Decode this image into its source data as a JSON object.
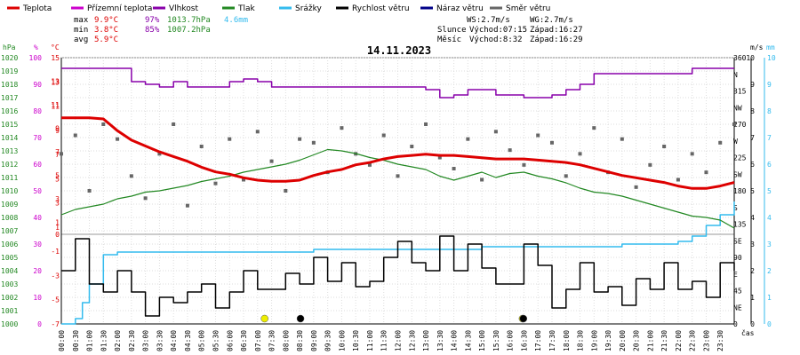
{
  "legend": [
    {
      "label": "Teplota",
      "color": "#dd0000"
    },
    {
      "label": "Přízemní teplota",
      "color": "#cc00cc"
    },
    {
      "label": "Vlhkost",
      "color": "#8800aa"
    },
    {
      "label": "Tlak",
      "color": "#228822"
    },
    {
      "label": "Srážky",
      "color": "#33bbee"
    },
    {
      "label": "Rychlost větru",
      "color": "#000000"
    },
    {
      "label": "Náraz větru",
      "color": "#000088"
    },
    {
      "label": "Směr větru",
      "color": "#666666"
    }
  ],
  "stats": {
    "max": {
      "label": "max",
      "temp": "9.9°C",
      "hum": "97%",
      "press": "1013.7hPa",
      "rain": "4.6mm"
    },
    "min": {
      "label": "min",
      "temp": "3.8°C",
      "hum": "85%",
      "press": "1007.2hPa"
    },
    "avg": {
      "label": "avg",
      "temp": "5.9°C"
    }
  },
  "info": {
    "ws": "WS:2.7m/s",
    "wg": "WG:2.7m/s",
    "sun_label": "Slunce",
    "sun_rise": "Východ:07:15",
    "sun_set": "Západ:16:27",
    "moon_label": "Měsíc",
    "moon_rise": "Východ:8:32",
    "moon_set": "Západ:16:29"
  },
  "chart_data": {
    "type": "line",
    "title": "14.11.2023",
    "x_tick_labels": [
      "00:00",
      "00:30",
      "01:00",
      "01:30",
      "02:00",
      "02:30",
      "03:00",
      "03:30",
      "04:00",
      "04:30",
      "05:00",
      "05:30",
      "06:00",
      "06:30",
      "07:00",
      "07:30",
      "08:00",
      "08:30",
      "09:00",
      "09:30",
      "10:00",
      "10:30",
      "11:00",
      "11:30",
      "12:00",
      "12:30",
      "13:00",
      "13:30",
      "14:00",
      "14:30",
      "15:00",
      "15:30",
      "16:00",
      "16:30",
      "17:00",
      "17:30",
      "18:00",
      "18:30",
      "19:00",
      "19:30",
      "20:00",
      "20:30",
      "21:00",
      "21:30",
      "22:00",
      "22:30",
      "23:00",
      "23:30"
    ],
    "x_axis_label": "čas",
    "axes": {
      "pressure": {
        "unit": "hPa",
        "range": [
          1000,
          1020
        ],
        "ticks": [
          "1000",
          "1001",
          "1002",
          "1003",
          "1004",
          "1005",
          "1006",
          "1007",
          "1008",
          "1009",
          "1010",
          "1011",
          "1012",
          "1013",
          "1014",
          "1015",
          "1016",
          "1017",
          "1018",
          "1019",
          "1020"
        ]
      },
      "humidity": {
        "unit": "%",
        "range": [
          0,
          100
        ],
        "ticks": [
          "0",
          "10",
          "20",
          "30",
          "40",
          "50",
          "60",
          "70",
          "80",
          "90",
          "100"
        ]
      },
      "temperature": {
        "unit": "°C",
        "range": [
          -7,
          15
        ],
        "ticks": [
          "-7",
          "-5",
          "-3",
          "-1",
          "1",
          "3",
          "5",
          "7",
          "9",
          "11",
          "13",
          "15"
        ],
        "upper_ticks": [
          "0",
          "1",
          "3",
          "5",
          "7",
          "9",
          "11",
          "13"
        ]
      },
      "wind_speed": {
        "unit": "m/s",
        "range": [
          0,
          10
        ],
        "ticks": [
          "0",
          "1",
          "2",
          "3",
          "4",
          "5",
          "6",
          "7",
          "8",
          "9",
          "10"
        ]
      },
      "rain": {
        "unit": "mm",
        "range": [
          0,
          10
        ],
        "ticks": [
          "0",
          "1",
          "2",
          "3",
          "4",
          "5",
          "6",
          "7",
          "8",
          "9",
          "10"
        ]
      },
      "direction": {
        "labels": [
          "0",
          "NE",
          "45",
          "E",
          "90",
          "SE",
          "135",
          "S",
          "180",
          "SW",
          "225",
          "W",
          "270",
          "NW",
          "315",
          "N",
          "360"
        ]
      }
    },
    "series": [
      {
        "name": "Teplota",
        "unit": "°C",
        "color": "#dd0000",
        "x": [
          0,
          1,
          1.5,
          2,
          2.5,
          3,
          3.5,
          4,
          4.5,
          5,
          5.5,
          6,
          6.5,
          7,
          7.5,
          8,
          8.5,
          9,
          9.5,
          10,
          10.5,
          11,
          11.5,
          12,
          12.5,
          13,
          13.5,
          14,
          14.5,
          15,
          15.5,
          16,
          16.5,
          17,
          17.5,
          18,
          18.5,
          19,
          19.5,
          20,
          20.5,
          21,
          21.5,
          22,
          22.5,
          23,
          23.5,
          24
        ],
        "y": [
          9.9,
          9.9,
          9.8,
          8.8,
          8.0,
          7.5,
          7.0,
          6.6,
          6.2,
          5.7,
          5.3,
          5.1,
          4.8,
          4.6,
          4.5,
          4.5,
          4.6,
          5.0,
          5.3,
          5.5,
          5.9,
          6.1,
          6.4,
          6.6,
          6.7,
          6.8,
          6.7,
          6.7,
          6.6,
          6.5,
          6.4,
          6.4,
          6.4,
          6.3,
          6.2,
          6.1,
          5.9,
          5.6,
          5.3,
          5.0,
          4.8,
          4.6,
          4.4,
          4.1,
          3.9,
          3.9,
          4.1,
          4.4
        ]
      },
      {
        "name": "Vlhkost",
        "unit": "%",
        "color": "#8800aa",
        "x": [
          0,
          0.5,
          1,
          1.5,
          2,
          2.5,
          3,
          3.5,
          4,
          4.5,
          5,
          5.5,
          6,
          6.5,
          7,
          7.5,
          8,
          8.5,
          9,
          9.5,
          10,
          10.5,
          11,
          11.5,
          12,
          12.5,
          13,
          13.5,
          14,
          14.5,
          15,
          15.5,
          16,
          16.5,
          17,
          17.5,
          18,
          18.5,
          19,
          19.5,
          20,
          20.5,
          21,
          21.5,
          22,
          22.5,
          23,
          23.5,
          24
        ],
        "y": [
          96,
          96,
          96,
          96,
          96,
          91,
          90,
          89,
          91,
          89,
          89,
          89,
          91,
          92,
          91,
          89,
          89,
          89,
          89,
          89,
          89,
          89,
          89,
          89,
          89,
          89,
          88,
          85,
          86,
          88,
          88,
          86,
          86,
          85,
          85,
          86,
          88,
          90,
          94,
          94,
          94,
          94,
          94,
          94,
          94,
          96,
          96,
          96,
          96
        ]
      },
      {
        "name": "Tlak",
        "unit": "hPa",
        "color": "#228822",
        "x": [
          0,
          0.5,
          1,
          1.5,
          2,
          2.5,
          3,
          3.5,
          4,
          4.5,
          5,
          5.5,
          6,
          6.5,
          7,
          7.5,
          8,
          8.5,
          9,
          9.5,
          10,
          10.5,
          11,
          11.5,
          12,
          12.5,
          13,
          13.5,
          14,
          14.5,
          15,
          15.5,
          16,
          16.5,
          17,
          17.5,
          18,
          18.5,
          19,
          19.5,
          20,
          20.5,
          21,
          21.5,
          22,
          22.5,
          23,
          23.5,
          24
        ],
        "y": [
          1008.2,
          1008.6,
          1008.8,
          1009.0,
          1009.4,
          1009.6,
          1009.9,
          1010.0,
          1010.2,
          1010.4,
          1010.7,
          1010.9,
          1011.1,
          1011.4,
          1011.6,
          1011.8,
          1012.0,
          1012.3,
          1012.7,
          1013.1,
          1013.0,
          1012.8,
          1012.5,
          1012.3,
          1012.0,
          1011.8,
          1011.6,
          1011.1,
          1010.8,
          1011.1,
          1011.4,
          1011.0,
          1011.3,
          1011.4,
          1011.1,
          1010.9,
          1010.6,
          1010.2,
          1009.9,
          1009.8,
          1009.6,
          1009.3,
          1009.0,
          1008.7,
          1008.4,
          1008.1,
          1008.0,
          1007.8,
          1007.2
        ]
      },
      {
        "name": "Srážky",
        "unit": "mm",
        "color": "#33bbee",
        "x": [
          0,
          0.5,
          0.75,
          1,
          1.5,
          2,
          7,
          9,
          14,
          15,
          17,
          20,
          22,
          22.5,
          23,
          23.5,
          24
        ],
        "y": [
          0,
          0.2,
          0.8,
          1.5,
          2.6,
          2.7,
          2.7,
          2.8,
          2.8,
          2.9,
          2.9,
          3.0,
          3.1,
          3.3,
          3.7,
          4.1,
          4.6
        ]
      },
      {
        "name": "Rychlost větru",
        "unit": "m/s",
        "color": "#000000",
        "x": [
          0,
          0.5,
          1,
          1.5,
          2,
          2.5,
          3,
          3.5,
          4,
          4.5,
          5,
          5.5,
          6,
          6.5,
          7,
          7.5,
          8,
          8.5,
          9,
          9.5,
          10,
          10.5,
          11,
          11.5,
          12,
          12.5,
          13,
          13.5,
          14,
          14.5,
          15,
          15.5,
          16,
          16.5,
          17,
          17.5,
          18,
          18.5,
          19,
          19.5,
          20,
          20.5,
          21,
          21.5,
          22,
          22.5,
          23,
          23.5,
          24
        ],
        "y": [
          2.0,
          3.2,
          1.5,
          1.2,
          2.0,
          1.2,
          0.3,
          1.0,
          0.8,
          1.2,
          1.5,
          0.6,
          1.2,
          2.0,
          1.3,
          1.3,
          1.9,
          1.5,
          2.5,
          1.6,
          2.3,
          1.4,
          1.6,
          2.5,
          3.1,
          2.3,
          2.0,
          3.3,
          2.0,
          3.0,
          2.1,
          1.5,
          1.5,
          3.0,
          2.2,
          0.6,
          1.3,
          2.3,
          1.2,
          1.4,
          0.7,
          1.7,
          1.3,
          2.3,
          1.3,
          1.6,
          1.0,
          2.3,
          2.0
        ]
      },
      {
        "name": "Směr větru",
        "unit": "°",
        "color": "#666666",
        "x": [
          0,
          0.5,
          1,
          1.5,
          2,
          2.5,
          3,
          3.5,
          4,
          4.5,
          5,
          5.5,
          6,
          6.5,
          7,
          7.5,
          8,
          8.5,
          9,
          9.5,
          10,
          10.5,
          11,
          11.5,
          12,
          12.5,
          13,
          13.5,
          14,
          14.5,
          15,
          15.5,
          16,
          16.5,
          17,
          17.5,
          18,
          18.5,
          19,
          19.5,
          20,
          20.5,
          21,
          21.5,
          22,
          22.5,
          23,
          23.5,
          24
        ],
        "y": [
          230,
          255,
          180,
          270,
          250,
          200,
          170,
          230,
          270,
          160,
          240,
          190,
          250,
          195,
          260,
          220,
          180,
          250,
          245,
          205,
          265,
          230,
          215,
          255,
          200,
          240,
          270,
          225,
          210,
          250,
          195,
          260,
          235,
          215,
          255,
          245,
          200,
          230,
          265,
          205,
          250,
          185,
          215,
          240,
          195,
          230,
          205,
          245,
          270
        ]
      }
    ],
    "markers": [
      {
        "name": "sunrise",
        "x": 7.25,
        "color": "#eeee00"
      },
      {
        "name": "moonrise",
        "x": 8.53,
        "color": "#000000"
      },
      {
        "name": "sunset",
        "x": 16.45,
        "color": "#eeee00"
      },
      {
        "name": "moonset",
        "x": 16.48,
        "color": "#000000"
      }
    ]
  }
}
